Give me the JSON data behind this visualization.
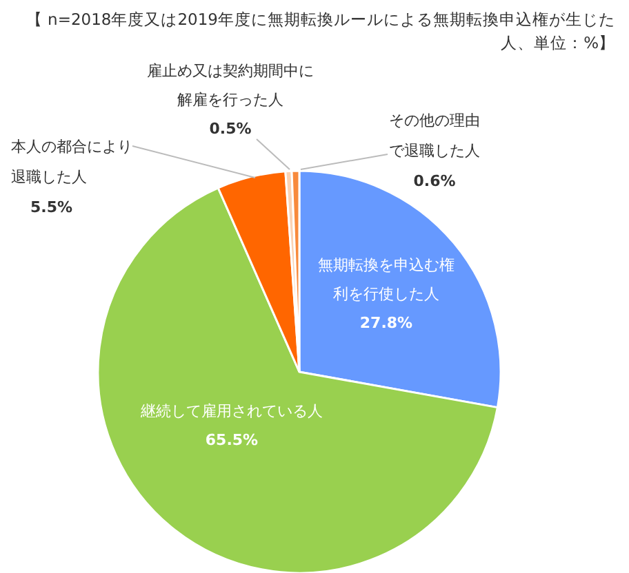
{
  "chart_data": {
    "type": "pie",
    "title": "【 n=2018年度又は2019年度に無期転換ルールによる無期転換申込権が生じた人、単位：%】",
    "categories": [
      "無期転換を申込む権利を行使した人",
      "継続して雇用されている人",
      "本人の都合により退職した人",
      "雇止め又は契約期間中に解雇を行った人",
      "その他の理由で退職した人"
    ],
    "values": [
      27.8,
      65.5,
      5.5,
      0.5,
      0.6
    ],
    "value_labels": [
      "27.8%",
      "65.5%",
      "5.5%",
      "0.5%",
      "0.6%"
    ],
    "colors": [
      "#6699ff",
      "#99d04f",
      "#ff6600",
      "#fbd3b4",
      "#f88a3c"
    ]
  }
}
